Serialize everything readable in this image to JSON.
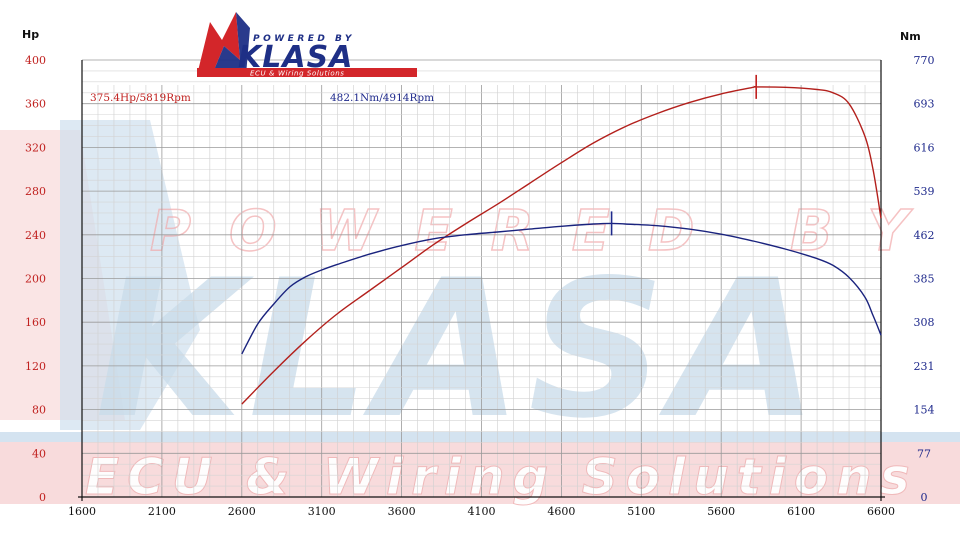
{
  "chart_data": {
    "type": "line",
    "title": "",
    "xlabel": "",
    "ylabel_left": "Hp",
    "ylabel_right": "Nm",
    "xlim": [
      1600,
      6600
    ],
    "ylim_left": [
      0,
      400
    ],
    "ylim_right": [
      0,
      770
    ],
    "x_ticks": [
      "1600",
      "2100",
      "2600",
      "3100",
      "3600",
      "4100",
      "4600",
      "5100",
      "5600",
      "6100",
      "6600"
    ],
    "y_left_ticks": [
      "0",
      "40",
      "80",
      "120",
      "160",
      "200",
      "240",
      "280",
      "320",
      "360",
      "400"
    ],
    "y_right_ticks": [
      "0",
      "77",
      "154",
      "231",
      "308",
      "385",
      "462",
      "539",
      "616",
      "693",
      "770"
    ],
    "grid": true,
    "series": [
      {
        "name": "Hp",
        "axis": "left",
        "color": "#b3201c",
        "x": [
          2600,
          2800,
          3000,
          3200,
          3400,
          3600,
          3800,
          4000,
          4200,
          4400,
          4600,
          4800,
          5000,
          5200,
          5400,
          5600,
          5800,
          5819,
          6000,
          6200,
          6300,
          6400,
          6500,
          6550,
          6600
        ],
        "y": [
          85,
          115,
          143,
          168,
          189,
          210,
          231,
          250,
          268,
          287,
          306,
          324,
          339,
          351,
          361,
          369,
          375,
          375.4,
          375,
          373,
          370,
          360,
          330,
          300,
          255
        ]
      },
      {
        "name": "Nm",
        "axis": "right",
        "color": "#1a237e",
        "x": [
          2600,
          2700,
          2800,
          2900,
          3000,
          3100,
          3200,
          3400,
          3600,
          3800,
          4000,
          4200,
          4400,
          4600,
          4800,
          4914,
          5000,
          5200,
          5400,
          5600,
          5800,
          6000,
          6200,
          6300,
          6400,
          6500,
          6550,
          6600
        ],
        "y": [
          252,
          305,
          340,
          370,
          388,
          400,
          410,
          428,
          443,
          455,
          462,
          467,
          472,
          477,
          481,
          482.1,
          481,
          478,
          472,
          463,
          451,
          437,
          420,
          408,
          387,
          352,
          320,
          285
        ]
      }
    ],
    "annotations": [
      {
        "text": "375.4Hp/5819Rpm",
        "color": "#c0211f",
        "marker_x": 5819,
        "marker_y": 375.4,
        "axis": "left"
      },
      {
        "text": "482.1Nm/4914Rpm",
        "color": "#1f2a8c",
        "marker_x": 4914,
        "marker_y": 482.1,
        "axis": "right"
      }
    ]
  },
  "watermark": {
    "logo_top": "POWERED BY",
    "logo_main": "KLASA",
    "logo_sub": "ECU & Wiring Solutions",
    "band_text": "POWERED BY",
    "big_text": "KLASA",
    "bottom_text": "ECU & Wiring Solutions"
  }
}
